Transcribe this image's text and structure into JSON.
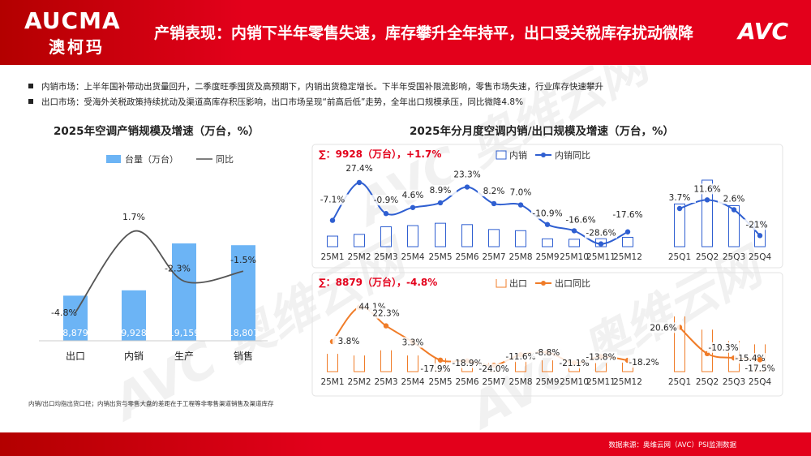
{
  "header": {
    "logo_main": "AUCMA",
    "logo_sub": "澳柯玛",
    "title": "产销表现：内销下半年零售失速，库存攀升全年持平，出口受关税库存扰动微降",
    "brand": "AVC"
  },
  "bullets": [
    "内销市场：上半年国补带动出货量回升，二季度旺季囤货及高预期下，内销出货稳定增长。下半年受国补限流影响，零售市场失速，行业库存快速攀升",
    "出口市场：受海外关税政策持续扰动及渠道高库存积压影响，出口市场呈现“前高后低”走势，全年出口规模承压，同比微降4.8%"
  ],
  "left_chart_title": "2025年空调产销规模及增速（万台，%）",
  "right_chart_title": "2025年分月度空调内销/出口规模及增速（万台，%）",
  "footnote": "内销/出口均指出货口径；内销出货与零售大盘的差距在于工程等非零售渠道销售及渠道库存",
  "footer": {
    "source": "数据来源：奥维云网（AVC）PSI监测数据"
  },
  "watermark": "AVC 奥维云网",
  "colors": {
    "red": "#e3001b",
    "blue_bar": "#6cb4f5",
    "blue_line": "#2f5fd1",
    "orange": "#f07c28",
    "orange_bar": "#f07c28",
    "grey_line": "#555555"
  },
  "chart_data": [
    {
      "type": "bar",
      "title": "2025年空调产销规模及增速（万台，%）",
      "categories": [
        "出口",
        "内销",
        "生产",
        "销售"
      ],
      "series": [
        {
          "name": "台量（万台）",
          "values": [
            8879,
            9928,
            19159,
            18807
          ],
          "labels": [
            "8,879",
            "9,928",
            "19,159",
            "18,807"
          ]
        },
        {
          "name": "同比",
          "values": [
            -4.8,
            1.7,
            -2.3,
            -1.5
          ],
          "labels": [
            "-4.8%",
            "1.7%",
            "-2.3%",
            "-1.5%"
          ]
        }
      ],
      "legend_position": "top"
    },
    {
      "type": "bar",
      "summary": "∑：9928（万台），+1.7%",
      "categories": [
        "25M1",
        "25M2",
        "25M3",
        "25M4",
        "25M5",
        "25M6",
        "25M7",
        "25M8",
        "25M9",
        "25M10",
        "25M11",
        "25M12"
      ],
      "series": [
        {
          "name": "内销",
          "values": [
            540,
            630,
            1020,
            1080,
            1200,
            1130,
            880,
            820,
            400,
            380,
            410,
            480
          ]
        },
        {
          "name": "内销同比",
          "values": [
            -7.1,
            27.4,
            -0.9,
            4.6,
            8.9,
            23.3,
            8.2,
            7.0,
            -10.9,
            -16.6,
            -28.6,
            -17.6
          ],
          "labels": [
            "-7.1%",
            "27.4%",
            "-0.9%",
            "4.6%",
            "8.9%",
            "23.3%",
            "8.2%",
            "7.0%",
            "-10.9%",
            "-16.6%",
            "-28.6%",
            "-17.6%"
          ]
        }
      ],
      "legend_position": "top"
    },
    {
      "type": "bar",
      "categories": [
        "25Q1",
        "25Q2",
        "25Q3",
        "25Q4"
      ],
      "series": [
        {
          "name": "内销",
          "values": [
            2190,
            3410,
            2100,
            1270
          ]
        },
        {
          "name": "内销同比",
          "values": [
            3.7,
            11.6,
            2.6,
            -21.0
          ],
          "labels": [
            "3.7%",
            "11.6%",
            "2.6%",
            "-21%"
          ]
        }
      ]
    },
    {
      "type": "bar",
      "summary": "∑：8879（万台），-4.8%",
      "categories": [
        "25M1",
        "25M2",
        "25M3",
        "25M4",
        "25M5",
        "25M6",
        "25M7",
        "25M8",
        "25M9",
        "25M10",
        "25M11",
        "25M12"
      ],
      "series": [
        {
          "name": "出口",
          "values": [
            1100,
            1000,
            1320,
            1000,
            830,
            770,
            520,
            680,
            700,
            600,
            530,
            560
          ]
        },
        {
          "name": "出口同比",
          "values": [
            3.8,
            44.1,
            22.3,
            3.3,
            -17.9,
            -18.9,
            -24.0,
            -11.6,
            -8.8,
            -21.1,
            -13.8,
            -18.2
          ],
          "labels": [
            "3.8%",
            "44.1%",
            "22.3%",
            "3.3%",
            "-17.9%",
            "-18.9%",
            "-24.0%",
            "-11.6%",
            "-8.8%",
            "-21.1%",
            "-13.8%",
            "-18.2%"
          ]
        }
      ],
      "legend_position": "top"
    },
    {
      "type": "bar",
      "categories": [
        "25Q1",
        "25Q2",
        "25Q3",
        "25Q4"
      ],
      "series": [
        {
          "name": "出口",
          "values": [
            3420,
            2600,
            1900,
            1690
          ]
        },
        {
          "name": "出口同比",
          "values": [
            20.6,
            -10.3,
            -15.4,
            -17.5
          ],
          "labels": [
            "20.6%",
            "-10.3%",
            "-15.4%",
            "-17.5%"
          ]
        }
      ]
    }
  ]
}
